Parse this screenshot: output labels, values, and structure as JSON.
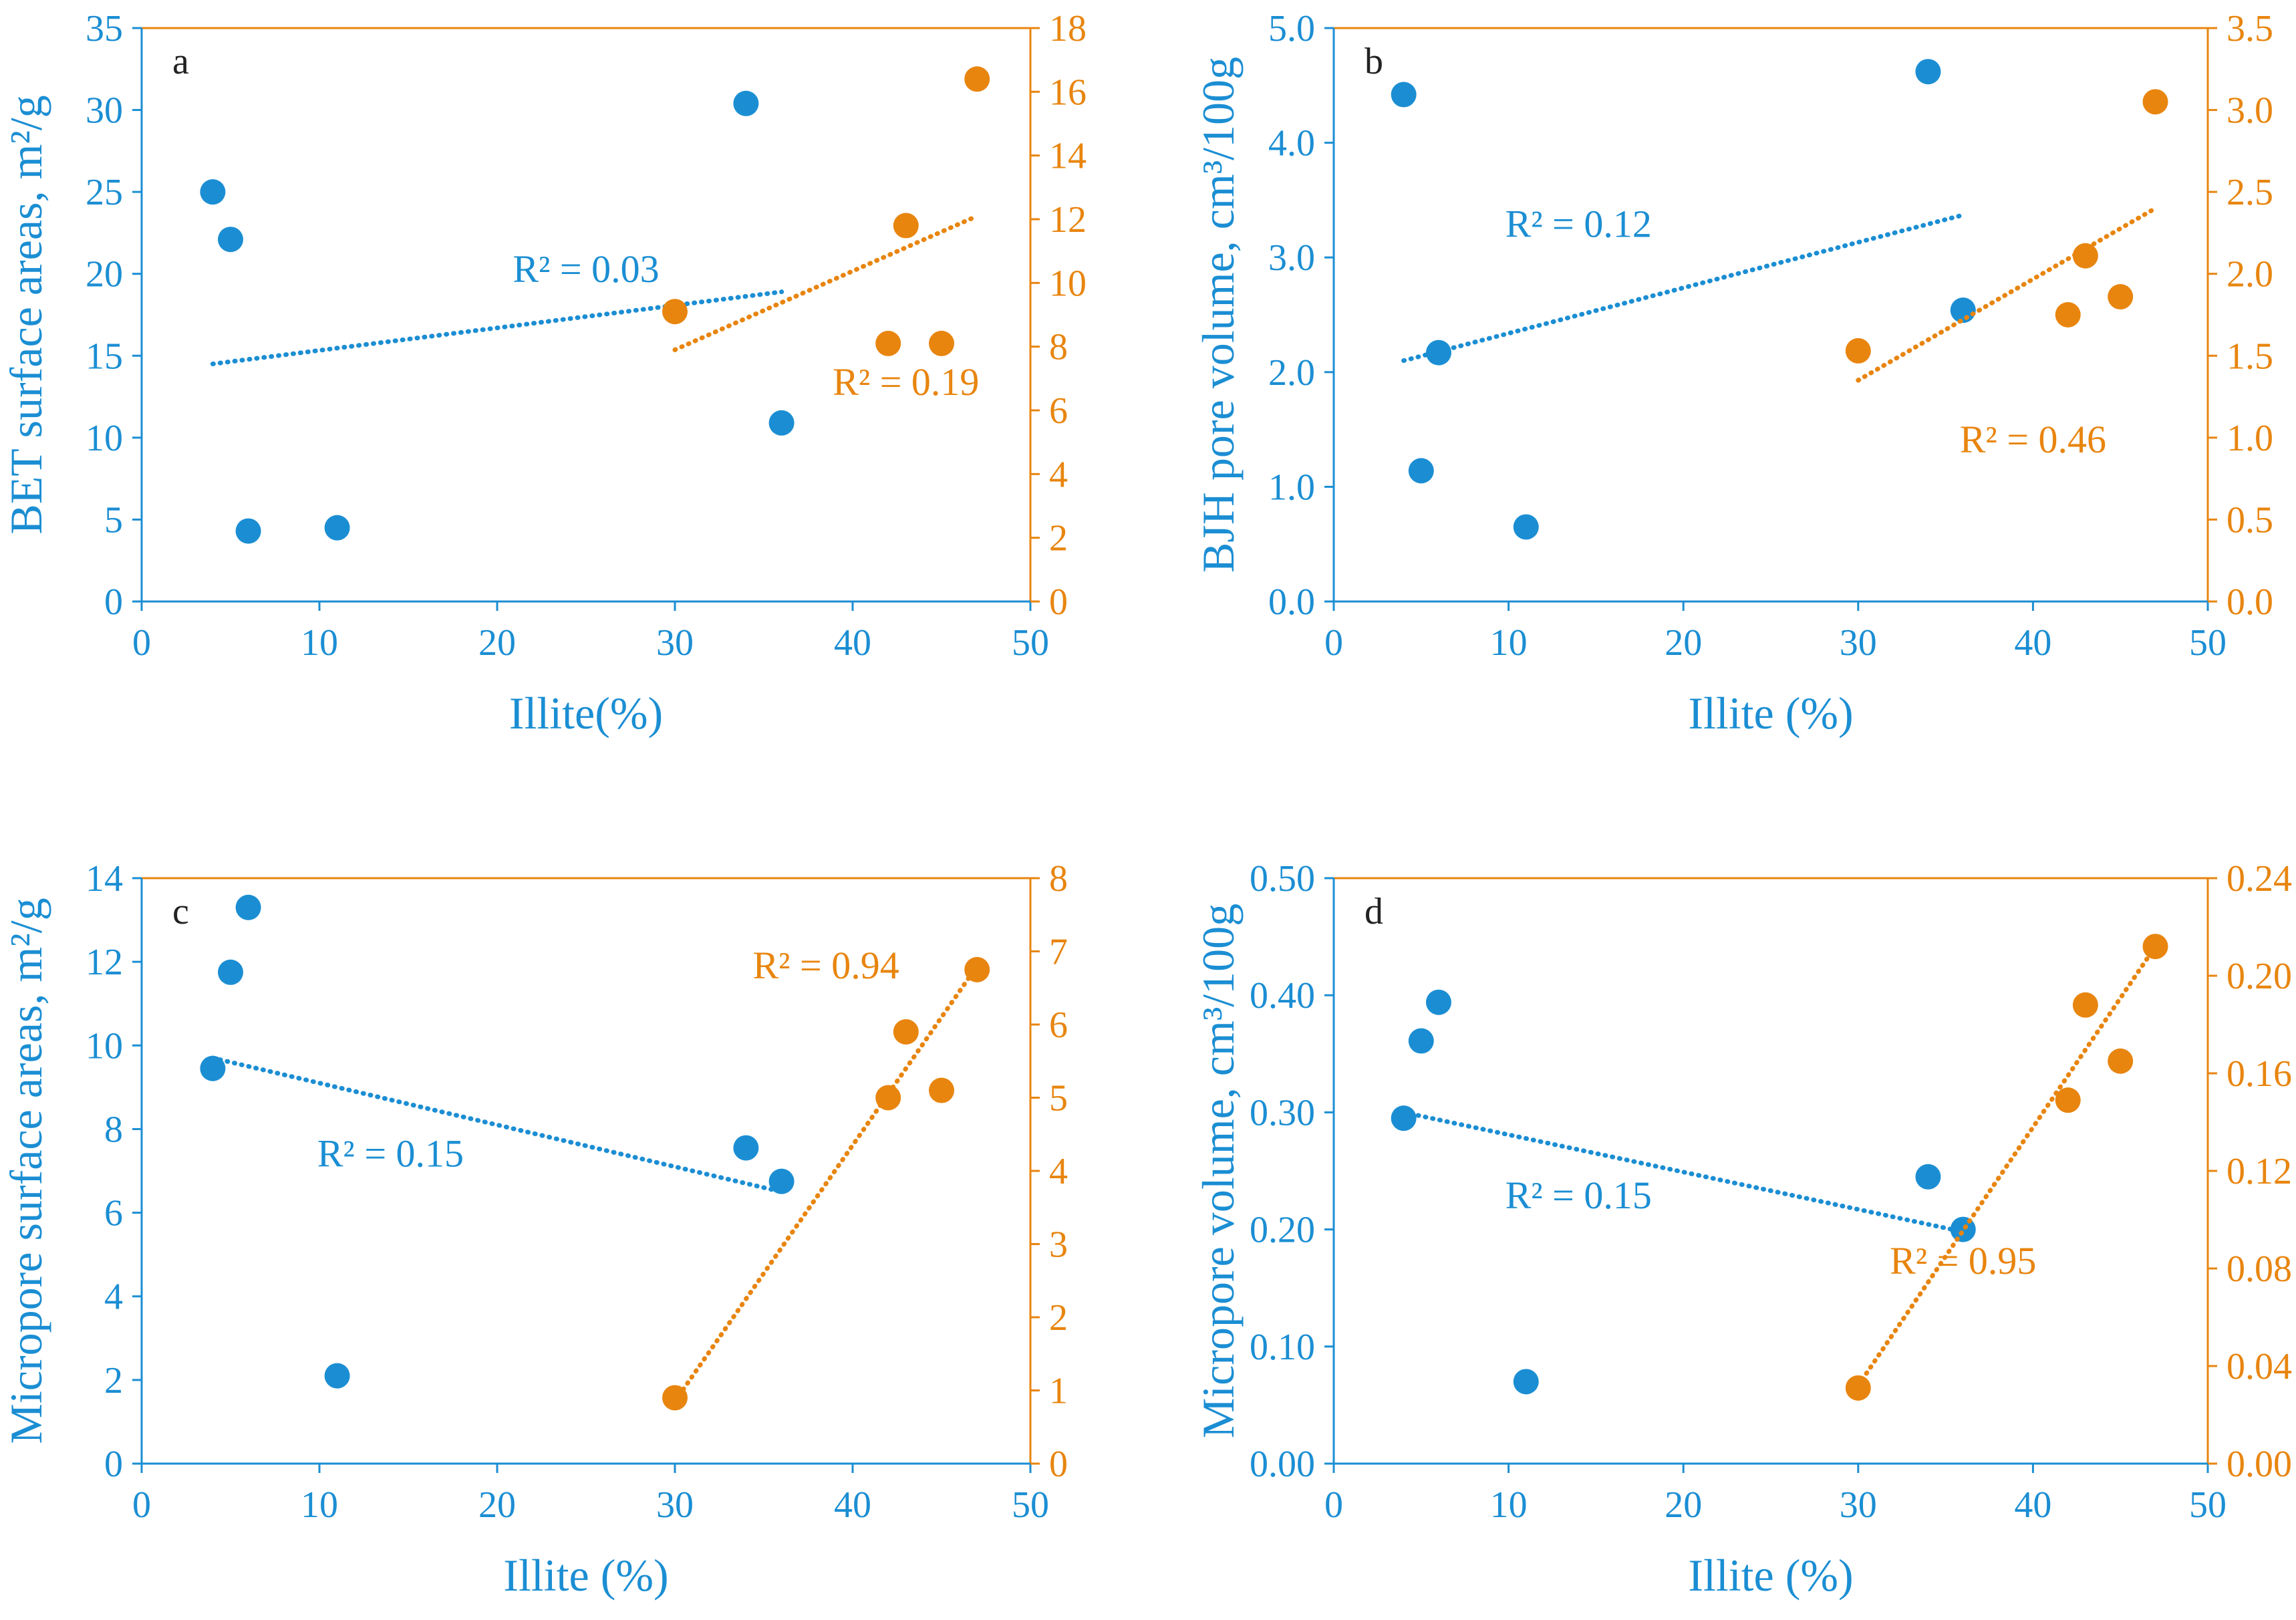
{
  "colors": {
    "blue": "#1b8ed3",
    "orange": "#e8850f"
  },
  "chart_data": [
    {
      "panel": "a",
      "type": "scatter",
      "xlabel": "Illite(%)",
      "ylabel_left": "BET surface areas, m²/g",
      "xlim": [
        0,
        50
      ],
      "xticks": [
        0,
        10,
        20,
        30,
        40,
        50
      ],
      "ylim_left": [
        0,
        35
      ],
      "yticks_left": [
        0,
        5,
        10,
        15,
        20,
        25,
        30,
        35
      ],
      "ylim_right": [
        0,
        18
      ],
      "yticks_right": [
        0,
        2,
        4,
        6,
        8,
        10,
        12,
        14,
        16,
        18
      ],
      "series": [
        {
          "name": "blue",
          "axis": "left",
          "x": [
            4,
            5,
            6,
            11,
            34,
            36
          ],
          "y": [
            25.0,
            22.1,
            4.3,
            4.5,
            30.4,
            10.9
          ],
          "trend": {
            "x1": 4,
            "y1": 14.5,
            "x2": 36,
            "y2": 18.9
          }
        },
        {
          "name": "orange",
          "axis": "right",
          "x": [
            30,
            42,
            43,
            45,
            47
          ],
          "y": [
            9.1,
            8.1,
            11.8,
            8.1,
            16.4
          ],
          "trend": {
            "x1": 30,
            "y1": 7.9,
            "x2": 47,
            "y2": 12.1
          }
        }
      ],
      "annotations": [
        {
          "text": "R² = 0.03",
          "series": "blue",
          "x": 25,
          "y": 19.5
        },
        {
          "text": "R² = 0.19",
          "series": "orange",
          "x": 43,
          "y": 12.6
        }
      ]
    },
    {
      "panel": "b",
      "type": "scatter",
      "xlabel": "Illite (%)",
      "ylabel_left": "BJH pore volume, cm³/100g",
      "xlim": [
        0,
        50
      ],
      "xticks": [
        0,
        10,
        20,
        30,
        40,
        50
      ],
      "ylim_left": [
        0,
        5
      ],
      "yticks_left": [
        "0.0",
        "1.0",
        "2.0",
        "3.0",
        "4.0",
        "5.0"
      ],
      "ylim_right": [
        0,
        3.5
      ],
      "yticks_right": [
        "0.0",
        "0.5",
        "1.0",
        "1.5",
        "2.0",
        "2.5",
        "3.0",
        "3.5"
      ],
      "series": [
        {
          "name": "blue",
          "axis": "left",
          "x": [
            4,
            5,
            6,
            11,
            34,
            36
          ],
          "y": [
            4.42,
            1.14,
            2.17,
            0.65,
            4.62,
            2.54
          ],
          "trend": {
            "x1": 4,
            "y1": 2.1,
            "x2": 36,
            "y2": 3.37
          }
        },
        {
          "name": "orange",
          "axis": "right",
          "x": [
            30,
            42,
            43,
            45,
            47
          ],
          "y": [
            1.53,
            1.75,
            2.11,
            1.86,
            3.05
          ],
          "trend": {
            "x1": 30,
            "y1": 1.35,
            "x2": 47,
            "y2": 2.4
          }
        }
      ],
      "annotations": [
        {
          "text": "R² = 0.12",
          "series": "blue",
          "x": 14,
          "y": 3.18
        },
        {
          "text": "R² = 0.46",
          "series": "orange",
          "x": 40,
          "y": 1.3
        }
      ]
    },
    {
      "panel": "c",
      "type": "scatter",
      "xlabel": "Illite (%)",
      "ylabel_left": "Micropore surface areas, m²/g",
      "xlim": [
        0,
        50
      ],
      "xticks": [
        0,
        10,
        20,
        30,
        40,
        50
      ],
      "ylim_left": [
        0,
        14
      ],
      "yticks_left": [
        0,
        2,
        4,
        6,
        8,
        10,
        12,
        14
      ],
      "ylim_right": [
        0,
        8
      ],
      "yticks_right": [
        0,
        1,
        2,
        3,
        4,
        5,
        6,
        7,
        8
      ],
      "series": [
        {
          "name": "blue",
          "axis": "left",
          "x": [
            4,
            5,
            6,
            11,
            34,
            36
          ],
          "y": [
            9.45,
            11.75,
            13.3,
            2.1,
            7.55,
            6.75
          ],
          "trend": {
            "x1": 4,
            "y1": 9.7,
            "x2": 36,
            "y2": 6.5
          }
        },
        {
          "name": "orange",
          "axis": "right",
          "x": [
            30,
            42,
            43,
            45,
            47
          ],
          "y": [
            0.9,
            5.0,
            5.9,
            5.1,
            6.75
          ],
          "trend": {
            "x1": 30,
            "y1": 0.85,
            "x2": 47,
            "y2": 6.8
          }
        }
      ],
      "annotations": [
        {
          "text": "R² = 0.15",
          "series": "blue",
          "x": 14,
          "y": 7.1
        },
        {
          "text": "R² = 0.94",
          "series": "orange",
          "x": 38.5,
          "y": 11.6
        }
      ]
    },
    {
      "panel": "d",
      "type": "scatter",
      "xlabel": "Illite (%)",
      "ylabel_left": "Micropore volume, cm³/100g",
      "xlim": [
        0,
        50
      ],
      "xticks": [
        0,
        10,
        20,
        30,
        40,
        50
      ],
      "ylim_left": [
        0,
        0.5
      ],
      "yticks_left": [
        "0.00",
        "0.10",
        "0.20",
        "0.30",
        "0.40",
        "0.50"
      ],
      "ylim_right": [
        0,
        0.24
      ],
      "yticks_right": [
        "0.00",
        "0.04",
        "0.08",
        "0.12",
        "0.16",
        "0.20",
        "0.24"
      ],
      "series": [
        {
          "name": "blue",
          "axis": "left",
          "x": [
            4,
            5,
            6,
            11,
            34,
            36
          ],
          "y": [
            0.295,
            0.361,
            0.394,
            0.07,
            0.245,
            0.2
          ],
          "trend": {
            "x1": 4,
            "y1": 0.3,
            "x2": 36,
            "y2": 0.198
          }
        },
        {
          "name": "orange",
          "axis": "right",
          "x": [
            30,
            42,
            43,
            45,
            47
          ],
          "y": [
            0.031,
            0.149,
            0.188,
            0.165,
            0.212
          ],
          "trend": {
            "x1": 30,
            "y1": 0.032,
            "x2": 47,
            "y2": 0.212
          }
        }
      ],
      "annotations": [
        {
          "text": "R² = 0.15",
          "series": "blue",
          "x": 14,
          "y": 0.218
        },
        {
          "text": "R² = 0.95",
          "series": "orange",
          "x": 36,
          "y": 0.162
        }
      ]
    }
  ]
}
